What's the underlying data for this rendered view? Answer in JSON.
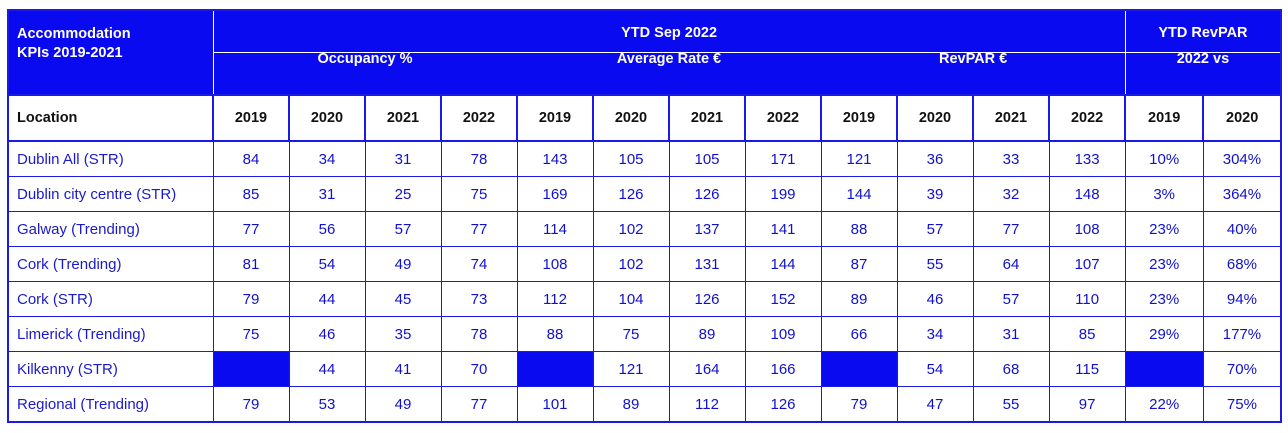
{
  "header": {
    "corner_line1": "Accommodation",
    "corner_line2": "KPIs 2019-2021",
    "ytd_title": "YTD Sep 2022",
    "group_occupancy": "Occupancy %",
    "group_rate": "Average Rate €",
    "group_revpar": "RevPAR €",
    "ytd_revpar_title": "YTD RevPAR",
    "ytd_revpar_sub": "2022 vs"
  },
  "columns": {
    "location": "Location",
    "years": [
      "2019",
      "2020",
      "2021",
      "2022",
      "2019",
      "2020",
      "2021",
      "2022",
      "2019",
      "2020",
      "2021",
      "2022",
      "2019",
      "2020"
    ]
  },
  "colors": {
    "header_bg": "#0a0af0",
    "text_blue": "#1111cc",
    "border": "#1a1ae6"
  },
  "rows": [
    {
      "location": "Dublin All (STR)",
      "values": [
        "84",
        "34",
        "31",
        "78",
        "143",
        "105",
        "105",
        "171",
        "121",
        "36",
        "33",
        "133",
        "10%",
        "304%"
      ]
    },
    {
      "location": "Dublin city centre (STR)",
      "values": [
        "85",
        "31",
        "25",
        "75",
        "169",
        "126",
        "126",
        "199",
        "144",
        "39",
        "32",
        "148",
        "3%",
        "364%"
      ]
    },
    {
      "location": "Galway (Trending)",
      "values": [
        "77",
        "56",
        "57",
        "77",
        "114",
        "102",
        "137",
        "141",
        "88",
        "57",
        "77",
        "108",
        "23%",
        "40%"
      ]
    },
    {
      "location": "Cork (Trending)",
      "values": [
        "81",
        "54",
        "49",
        "74",
        "108",
        "102",
        "131",
        "144",
        "87",
        "55",
        "64",
        "107",
        "23%",
        "68%"
      ]
    },
    {
      "location": "Cork (STR)",
      "values": [
        "79",
        "44",
        "45",
        "73",
        "112",
        "104",
        "126",
        "152",
        "89",
        "46",
        "57",
        "110",
        "23%",
        "94%"
      ]
    },
    {
      "location": "Limerick (Trending)",
      "values": [
        "75",
        "46",
        "35",
        "78",
        "88",
        "75",
        "89",
        "109",
        "66",
        "34",
        "31",
        "85",
        "29%",
        "177%"
      ]
    },
    {
      "location": "Kilkenny (STR)",
      "values": [
        "",
        "44",
        "41",
        "70",
        "",
        "121",
        "164",
        "166",
        "",
        "54",
        "68",
        "115",
        "",
        "70%"
      ]
    },
    {
      "location": "Regional (Trending)",
      "values": [
        "79",
        "53",
        "49",
        "77",
        "101",
        "89",
        "112",
        "126",
        "79",
        "47",
        "55",
        "97",
        "22%",
        "75%"
      ]
    }
  ]
}
